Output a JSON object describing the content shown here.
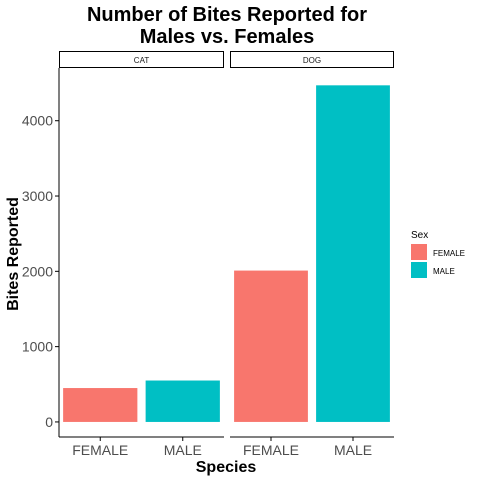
{
  "chart_data": {
    "type": "bar",
    "title": "Number of Bites Reported for\nMales vs. Females",
    "xlabel": "Species",
    "ylabel": "Bites Reported",
    "ylim": [
      -200,
      4700
    ],
    "yticks": [
      0,
      1000,
      2000,
      3000,
      4000
    ],
    "grid": false,
    "legend": {
      "title": "Sex",
      "placement": "right",
      "items": [
        {
          "label": "FEMALE",
          "color": "#F8766D"
        },
        {
          "label": "MALE",
          "color": "#00BFC4"
        }
      ]
    },
    "facets": [
      {
        "strip": "CAT",
        "categories": [
          "FEMALE",
          "MALE"
        ],
        "values": [
          450,
          550
        ]
      },
      {
        "strip": "DOG",
        "categories": [
          "FEMALE",
          "MALE"
        ],
        "values": [
          2010,
          4470
        ]
      }
    ]
  }
}
